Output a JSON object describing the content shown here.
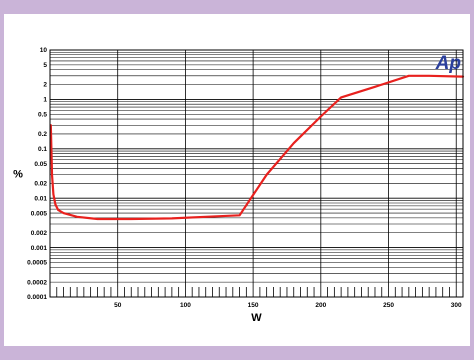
{
  "chart_data": {
    "type": "line",
    "title": "",
    "xlabel": "W",
    "ylabel": "%",
    "x_scale": "linear",
    "y_scale": "log",
    "xlim": [
      0,
      305
    ],
    "ylim": [
      0.0001,
      10
    ],
    "x_ticks": [
      "50",
      "100",
      "150",
      "200",
      "250",
      "300"
    ],
    "y_ticks": [
      "10",
      "5",
      "2",
      "1",
      "0.5",
      "0.2",
      "0.1",
      "0.05",
      "0.02",
      "0.01",
      "0.005",
      "0.002",
      "0.001",
      "0.0005",
      "0.0002",
      "0.0001"
    ],
    "grid": true,
    "series": [
      {
        "color": "#e8211e",
        "x": [
          0.6,
          1.0,
          1.5,
          2.5,
          4,
          6,
          10,
          20,
          35,
          60,
          90,
          115,
          140,
          160,
          180,
          200,
          215,
          240,
          265,
          280,
          305
        ],
        "y": [
          0.3,
          0.1,
          0.03,
          0.012,
          0.0075,
          0.0058,
          0.005,
          0.0042,
          0.0038,
          0.0038,
          0.0039,
          0.0042,
          0.0045,
          0.03,
          0.13,
          0.45,
          1.1,
          1.8,
          3.0,
          3.0,
          2.9
        ]
      }
    ]
  },
  "logo": {
    "text": "Ap",
    "color": "#2b3f9c"
  }
}
